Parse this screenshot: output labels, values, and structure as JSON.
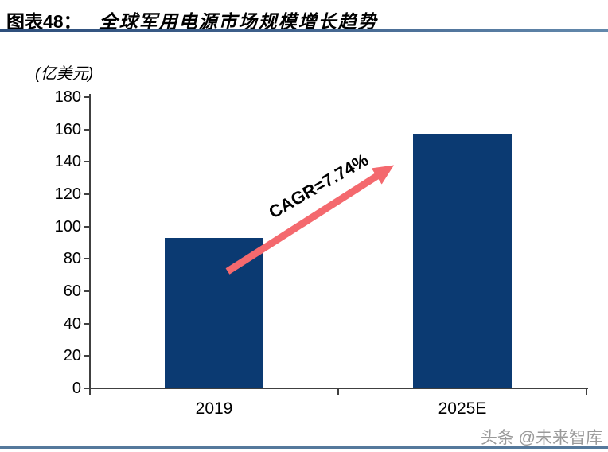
{
  "figure": {
    "label": "图表48：",
    "title": "全球军用电源市场规模增长趋势"
  },
  "chart_data": {
    "type": "bar",
    "categories": [
      "2019",
      "2025E"
    ],
    "values": [
      93,
      157
    ],
    "title": "全球军用电源市场规模增长趋势",
    "xlabel": "",
    "ylabel": "(亿美元)",
    "ylim": [
      0,
      180
    ],
    "yticks": [
      180,
      160,
      140,
      120,
      100,
      80,
      60,
      40,
      20,
      0
    ],
    "grid": false,
    "legend": "none",
    "annotation": {
      "text": "CAGR=7.74%",
      "arrow_from_value_approx": 70,
      "arrow_to_value_approx": 140
    },
    "colors": {
      "bar": "#0b3a72",
      "arrow": "#f4696e",
      "axis": "#404040"
    }
  },
  "watermark": "头条 @未来智库"
}
